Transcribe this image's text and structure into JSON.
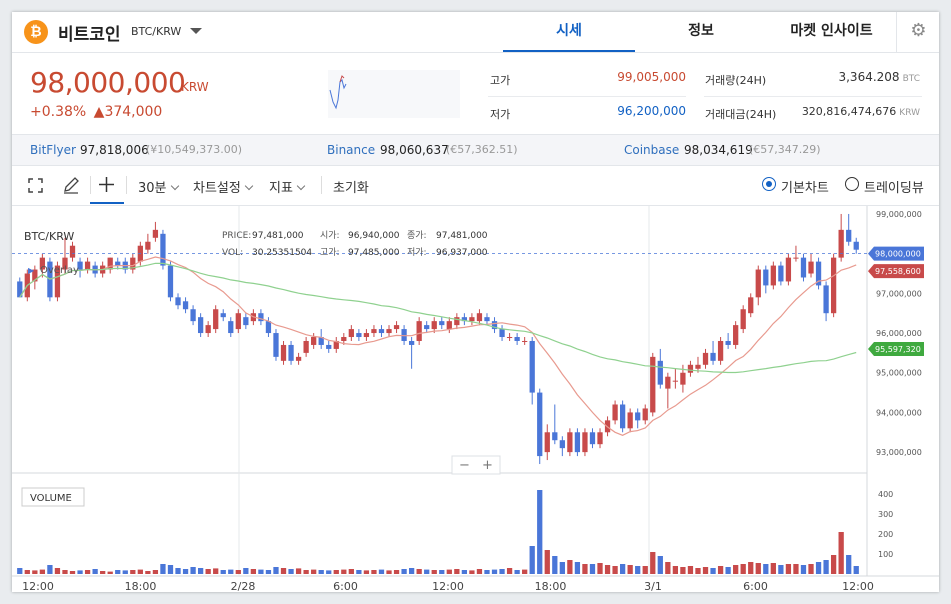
{
  "header": {
    "coin_symbol": "₿",
    "coin_name": "비트코인",
    "pair": "BTC/KRW",
    "tabs": [
      {
        "label": "시세",
        "active": true
      },
      {
        "label": "정보",
        "active": false
      },
      {
        "label": "마켓 인사이트",
        "active": false
      }
    ],
    "settings_icon": "gear-icon"
  },
  "summary": {
    "price": "98,000,000",
    "unit": "KRW",
    "change_pct": "+0.38%",
    "change_abs": "▲374,000",
    "high_label": "고가",
    "high_value": "99,005,000",
    "low_label": "저가",
    "low_value": "96,200,000",
    "volume_label": "거래량(24H)",
    "volume_value": "3,364.208",
    "volume_unit": "BTC",
    "amount_label": "거래대금(24H)",
    "amount_value": "320,816,474,676",
    "amount_unit": "KRW"
  },
  "exchanges": [
    {
      "name": "BitFlyer",
      "price": "97,818,006",
      "sub": "(¥10,549,373.00)"
    },
    {
      "name": "Binance",
      "price": "98,060,637",
      "sub": "(€57,362.51)"
    },
    {
      "name": "Coinbase",
      "price": "98,034,619",
      "sub": "(€57,347.29)"
    }
  ],
  "toolbar": {
    "interval": "30분",
    "chart_settings": "차트설정",
    "indicators": "지표",
    "reset": "초기화",
    "mode_basic": "기본차트",
    "mode_trading": "트레이딩뷰"
  },
  "chart_info": {
    "pair": "BTC/KRW",
    "overlay": "Overlay",
    "price_label": "PRICE:",
    "price": "97,481,000",
    "open_label": "시가:",
    "open": "96,940,000",
    "close_label": "종가:",
    "close": "97,481,000",
    "vol_label": "VOL:",
    "vol": "30.25351504",
    "high_label": "고가:",
    "high": "97,485,000",
    "low_label": "저가:",
    "low": "96,937,000",
    "volume_title": "VOLUME",
    "zoom_out": "−",
    "zoom_in": "+"
  },
  "chart_data": {
    "type": "candlestick",
    "y_axis_labels": [
      "99,000,000",
      "98,000,000",
      "97,000,000",
      "96,000,000",
      "95,000,000",
      "94,000,000",
      "93,000,000"
    ],
    "y_axis_range": [
      92600000,
      99100000
    ],
    "volume_axis_labels": [
      "400",
      "300",
      "200",
      "100"
    ],
    "volume_range": [
      0,
      430
    ],
    "x_axis_labels": [
      "12:00",
      "18:00",
      "2/28",
      "6:00",
      "12:00",
      "18:00",
      "3/1",
      "6:00",
      "12:00"
    ],
    "tags": [
      {
        "value": "98,000,000",
        "y": 98000000,
        "color": "#4a76d8"
      },
      {
        "value": "97,558,600",
        "y": 97558600,
        "color": "#c84a4a"
      },
      {
        "value": "95,597,320",
        "y": 95597320,
        "color": "#3fa93f"
      }
    ],
    "candles": [
      [
        97300000,
        96900000,
        97400000,
        96900000,
        30
      ],
      [
        96900000,
        97500000,
        97600000,
        96800000,
        20
      ],
      [
        97300000,
        97600000,
        97700000,
        97100000,
        18
      ],
      [
        97600000,
        97900000,
        98000000,
        97400000,
        22
      ],
      [
        97800000,
        96900000,
        97900000,
        96800000,
        45
      ],
      [
        96900000,
        97700000,
        97800000,
        96800000,
        30
      ],
      [
        97600000,
        97900000,
        98400000,
        97500000,
        20
      ],
      [
        97900000,
        98200000,
        98300000,
        97800000,
        15
      ],
      [
        97800000,
        97600000,
        97900000,
        97400000,
        18
      ],
      [
        97600000,
        97800000,
        97900000,
        97500000,
        20
      ],
      [
        97700000,
        97500000,
        97800000,
        97400000,
        25
      ],
      [
        97500000,
        97700000,
        97800000,
        97400000,
        15
      ],
      [
        97600000,
        97900000,
        97900000,
        97500000,
        12
      ],
      [
        97800000,
        97700000,
        97900000,
        97600000,
        20
      ],
      [
        97800000,
        97600000,
        97900000,
        97500000,
        18
      ],
      [
        97600000,
        97900000,
        98000000,
        97500000,
        20
      ],
      [
        97800000,
        98200000,
        98300000,
        97700000,
        22
      ],
      [
        98100000,
        98300000,
        98500000,
        98000000,
        15
      ],
      [
        98400000,
        98600000,
        98800000,
        98300000,
        20
      ],
      [
        98500000,
        97700000,
        98600000,
        97600000,
        50
      ],
      [
        97700000,
        96900000,
        97800000,
        96800000,
        45
      ],
      [
        96900000,
        96700000,
        97000000,
        96600000,
        30
      ],
      [
        96800000,
        96600000,
        96900000,
        96500000,
        25
      ],
      [
        96600000,
        96300000,
        96700000,
        96200000,
        35
      ],
      [
        96400000,
        96000000,
        96500000,
        95900000,
        30
      ],
      [
        96000000,
        96200000,
        96300000,
        95900000,
        25
      ],
      [
        96100000,
        96600000,
        96700000,
        96000000,
        28
      ],
      [
        96500000,
        96400000,
        96600000,
        96300000,
        20
      ],
      [
        96300000,
        96000000,
        96400000,
        95900000,
        22
      ],
      [
        96100000,
        96500000,
        96600000,
        96000000,
        20
      ],
      [
        96400000,
        96200000,
        96500000,
        96100000,
        30
      ],
      [
        96300000,
        96500000,
        96600000,
        96200000,
        25
      ],
      [
        96500000,
        96300000,
        96600000,
        96200000,
        22
      ],
      [
        96300000,
        96000000,
        96400000,
        95900000,
        20
      ],
      [
        96000000,
        95400000,
        96100000,
        95300000,
        35
      ],
      [
        95300000,
        95700000,
        95800000,
        95200000,
        30
      ],
      [
        95700000,
        95300000,
        95800000,
        95200000,
        25
      ],
      [
        95300000,
        95400000,
        95500000,
        95200000,
        28
      ],
      [
        95500000,
        95800000,
        95900000,
        95400000,
        20
      ],
      [
        95700000,
        95900000,
        96000000,
        95600000,
        22
      ],
      [
        95900000,
        95700000,
        96100000,
        95600000,
        20
      ],
      [
        95700000,
        95600000,
        95800000,
        95500000,
        18
      ],
      [
        95600000,
        95800000,
        95900000,
        95500000,
        20
      ],
      [
        95800000,
        95900000,
        96000000,
        95700000,
        22
      ],
      [
        95900000,
        96100000,
        96200000,
        95800000,
        25
      ],
      [
        96000000,
        95900000,
        96100000,
        95800000,
        20
      ],
      [
        95900000,
        96000000,
        96100000,
        95800000,
        18
      ],
      [
        96000000,
        96100000,
        96200000,
        95900000,
        20
      ],
      [
        96100000,
        96000000,
        96200000,
        95900000,
        22
      ],
      [
        96000000,
        96100000,
        96200000,
        95900000,
        18
      ],
      [
        96100000,
        96200000,
        96300000,
        96000000,
        20
      ],
      [
        96100000,
        95800000,
        96200000,
        95700000,
        25
      ],
      [
        95800000,
        95700000,
        95900000,
        95100000,
        30
      ],
      [
        95800000,
        96300000,
        96400000,
        95700000,
        25
      ],
      [
        96200000,
        96100000,
        96300000,
        96000000,
        22
      ],
      [
        96100000,
        96300000,
        96400000,
        96000000,
        20
      ],
      [
        96300000,
        96200000,
        96400000,
        96100000,
        20
      ],
      [
        96100000,
        96300000,
        96400000,
        96000000,
        22
      ],
      [
        96200000,
        96400000,
        96500000,
        96100000,
        25
      ],
      [
        96400000,
        96300000,
        96500000,
        96200000,
        20
      ],
      [
        96300000,
        96400000,
        96500000,
        96200000,
        18
      ],
      [
        96300000,
        96500000,
        96600000,
        96200000,
        25
      ],
      [
        96400000,
        96300000,
        96500000,
        96200000,
        20
      ],
      [
        96300000,
        96100000,
        96400000,
        96000000,
        22
      ],
      [
        96100000,
        95900000,
        96200000,
        95800000,
        25
      ],
      [
        95900000,
        95900000,
        96000000,
        95800000,
        30
      ],
      [
        95900000,
        95800000,
        96000000,
        95700000,
        20
      ],
      [
        95800000,
        95800000,
        95900000,
        95700000,
        22
      ],
      [
        95800000,
        94500000,
        95900000,
        94200000,
        140
      ],
      [
        94500000,
        92900000,
        94600000,
        92700000,
        420
      ],
      [
        93000000,
        93500000,
        93700000,
        92800000,
        120
      ],
      [
        93500000,
        93300000,
        94200000,
        93200000,
        90
      ],
      [
        93300000,
        93100000,
        93400000,
        92900000,
        60
      ],
      [
        93000000,
        93500000,
        93600000,
        92900000,
        70
      ],
      [
        93500000,
        93000000,
        93600000,
        92900000,
        60
      ],
      [
        93000000,
        93500000,
        93600000,
        92900000,
        50
      ],
      [
        93500000,
        93200000,
        93600000,
        93100000,
        50
      ],
      [
        93200000,
        93500000,
        93600000,
        93100000,
        55
      ],
      [
        93500000,
        93800000,
        93900000,
        93400000,
        45
      ],
      [
        93800000,
        94200000,
        94300000,
        93700000,
        40
      ],
      [
        94200000,
        93600000,
        94300000,
        93500000,
        50
      ],
      [
        93600000,
        94000000,
        94100000,
        93500000,
        45
      ],
      [
        94000000,
        93800000,
        94100000,
        93600000,
        40
      ],
      [
        93800000,
        94100000,
        94200000,
        93700000,
        40
      ],
      [
        94000000,
        95400000,
        95500000,
        93900000,
        110
      ],
      [
        95300000,
        94700000,
        95600000,
        94600000,
        90
      ],
      [
        94600000,
        94900000,
        95000000,
        94100000,
        60
      ],
      [
        94800000,
        94800000,
        95100000,
        94600000,
        40
      ],
      [
        94700000,
        95000000,
        95200000,
        94500000,
        35
      ],
      [
        95000000,
        95200000,
        95300000,
        94900000,
        40
      ],
      [
        95100000,
        95200000,
        95400000,
        95000000,
        30
      ],
      [
        95200000,
        95500000,
        95600000,
        95100000,
        35
      ],
      [
        95500000,
        95300000,
        95800000,
        95200000,
        30
      ],
      [
        95300000,
        95800000,
        95900000,
        95200000,
        40
      ],
      [
        95800000,
        95700000,
        96000000,
        95600000,
        35
      ],
      [
        95700000,
        96200000,
        96300000,
        95600000,
        45
      ],
      [
        96100000,
        96600000,
        96700000,
        96000000,
        50
      ],
      [
        96500000,
        96900000,
        97000000,
        96400000,
        60
      ],
      [
        96900000,
        97600000,
        97700000,
        96700000,
        55
      ],
      [
        97600000,
        97200000,
        97700000,
        97000000,
        50
      ],
      [
        97200000,
        97700000,
        97800000,
        97100000,
        55
      ],
      [
        97700000,
        97300000,
        97800000,
        97200000,
        45
      ],
      [
        97300000,
        97900000,
        98000000,
        97200000,
        50
      ],
      [
        97900000,
        97900000,
        98200000,
        97800000,
        50
      ],
      [
        97900000,
        97400000,
        98000000,
        97300000,
        45
      ],
      [
        97500000,
        97800000,
        98000000,
        97400000,
        50
      ],
      [
        97800000,
        97200000,
        97900000,
        97100000,
        60
      ],
      [
        97200000,
        96500000,
        97300000,
        96300000,
        70
      ],
      [
        96500000,
        97900000,
        98000000,
        96400000,
        95
      ],
      [
        97900000,
        98600000,
        99000000,
        97800000,
        210
      ],
      [
        98600000,
        98300000,
        99000000,
        98200000,
        95
      ],
      [
        98300000,
        98100000,
        98400000,
        98000000,
        40
      ]
    ]
  }
}
